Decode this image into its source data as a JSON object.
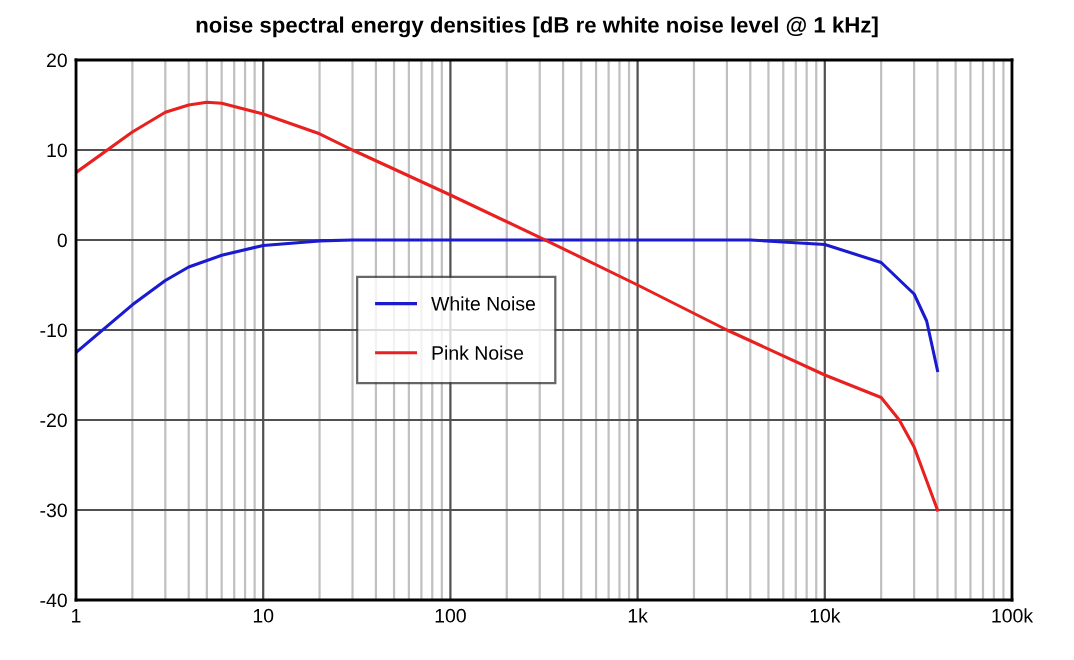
{
  "chart_data": {
    "type": "line",
    "title": "noise spectral energy densities [dB re white noise level @ 1 kHz]",
    "log": "x",
    "grid": true,
    "legend": "center",
    "marker": "none",
    "line_style": "solid",
    "xlim": [
      1,
      100000
    ],
    "xticks": [
      {
        "value": 1,
        "label": "1"
      },
      {
        "value": 10,
        "label": "10"
      },
      {
        "value": 100,
        "label": "100"
      },
      {
        "value": 1000,
        "label": "1k"
      },
      {
        "value": 10000,
        "label": "10k"
      },
      {
        "value": 100000,
        "label": "100k"
      }
    ],
    "ylim": [
      -40,
      20
    ],
    "yticks": [
      -40,
      -30,
      -20,
      -10,
      0,
      10,
      20
    ],
    "series": [
      {
        "name": "White Noise",
        "color": "#1a1ad0",
        "x": [
          1,
          2,
          3,
          4,
          6,
          10,
          20,
          30,
          4000,
          10000,
          20000,
          30000,
          35000,
          40000
        ],
        "values": [
          -12.5,
          -7.2,
          -4.5,
          -3,
          -1.7,
          -0.6,
          -0.1,
          0,
          0,
          -0.5,
          -2.5,
          -6,
          -9,
          -14.5
        ]
      },
      {
        "name": "Pink Noise",
        "color": "#e82020",
        "x": [
          1,
          2,
          3,
          4,
          5,
          6,
          10,
          20,
          30,
          100,
          300,
          1000,
          3000,
          10000,
          20000,
          25000,
          30000,
          40000
        ],
        "values": [
          7.5,
          12,
          14.2,
          15,
          15.3,
          15.2,
          14,
          11.8,
          10,
          5,
          0.3,
          -5,
          -10,
          -15,
          -17.5,
          -20,
          -23,
          -30
        ]
      }
    ]
  }
}
